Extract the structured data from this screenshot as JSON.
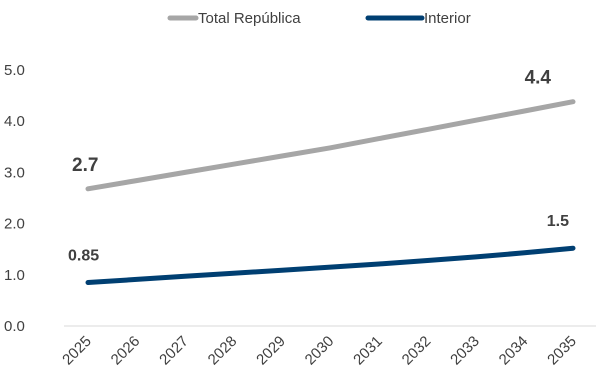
{
  "chart_data": {
    "type": "line",
    "title": "",
    "xlabel": "",
    "ylabel": "",
    "x": [
      "2025",
      "2026",
      "2027",
      "2028",
      "2029",
      "2030",
      "2031",
      "2032",
      "2033",
      "2034",
      "2035"
    ],
    "ylim": [
      0,
      5
    ],
    "yticks": [
      "0.0",
      "1.0",
      "2.0",
      "3.0",
      "4.0",
      "5.0"
    ],
    "grid": false,
    "legend_position": "top-center",
    "series": [
      {
        "name": "Total República",
        "color": "#a6a6a6",
        "values": [
          2.68,
          2.84,
          3.0,
          3.16,
          3.32,
          3.48,
          3.66,
          3.84,
          4.02,
          4.2,
          4.38
        ],
        "labels": [
          {
            "index": 0,
            "text": "2.7"
          },
          {
            "index": 10,
            "text": "4.4"
          }
        ]
      },
      {
        "name": "Interior",
        "color": "#003f72",
        "values": [
          0.85,
          0.91,
          0.97,
          1.03,
          1.09,
          1.15,
          1.21,
          1.28,
          1.35,
          1.43,
          1.52
        ],
        "labels": [
          {
            "index": 0,
            "text": "0.85"
          },
          {
            "index": 10,
            "text": "1.5"
          }
        ]
      }
    ]
  }
}
